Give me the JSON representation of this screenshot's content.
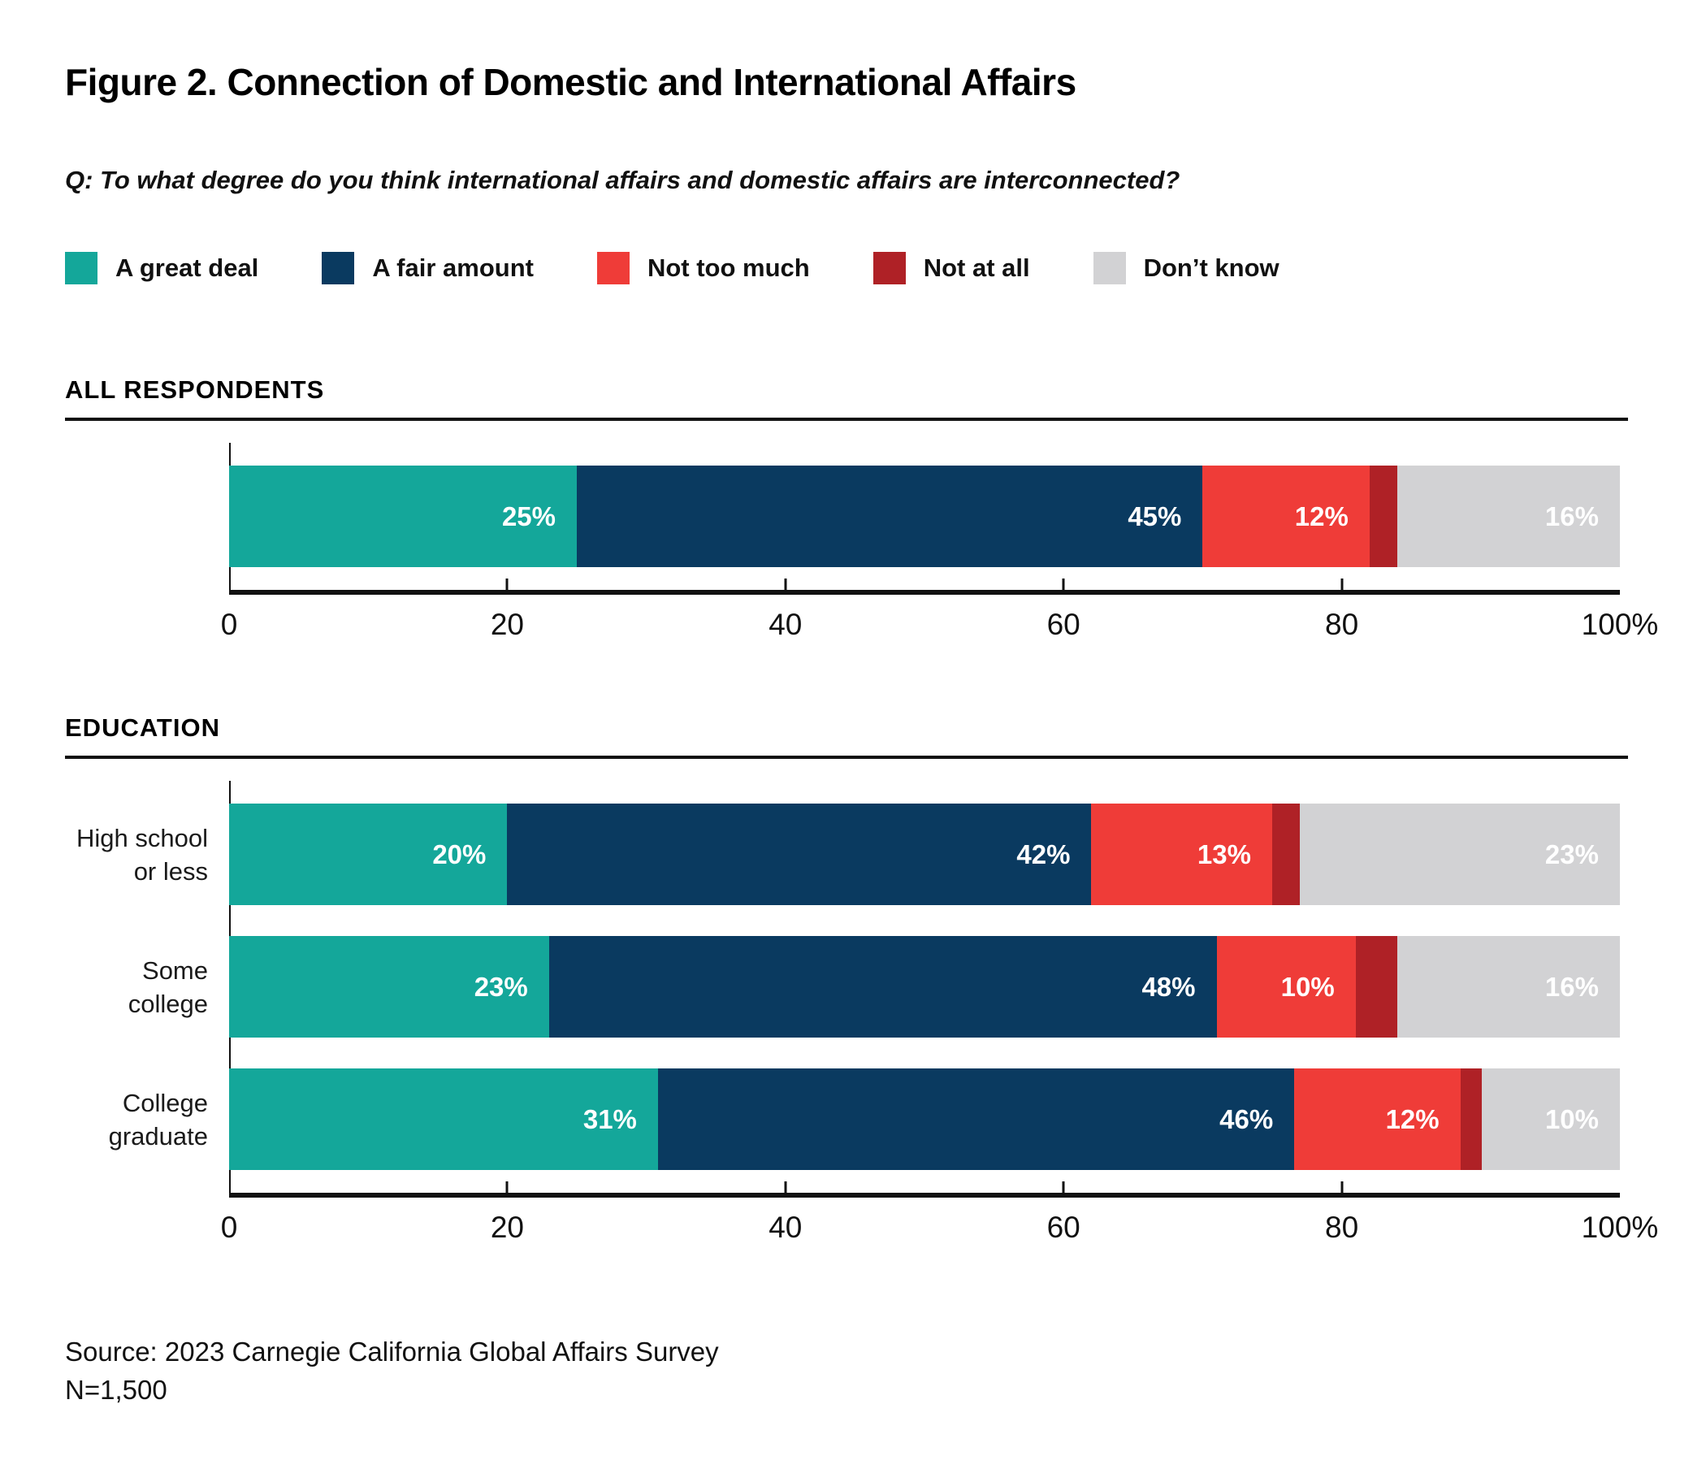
{
  "page": {
    "title": "Figure 2. Connection of Domestic and International Affairs",
    "question": "Q: To what degree do you think international affairs and domestic affairs are interconnected?",
    "source_line1": "Source: 2023 Carnegie California Global Affairs Survey",
    "source_line2": "N=1,500"
  },
  "colors": {
    "a_great_deal": "#14A79A",
    "a_fair_amount": "#0A3A60",
    "not_too_much": "#EF3C38",
    "not_at_all": "#AF2126",
    "dont_know": "#D2D2D4",
    "axis": "#111111",
    "value_label": "#FFFFFF"
  },
  "legend": [
    {
      "label": "A great deal",
      "color": "#14A79A"
    },
    {
      "label": "A fair amount",
      "color": "#0A3A60"
    },
    {
      "label": "Not too much",
      "color": "#EF3C38"
    },
    {
      "label": "Not at all",
      "color": "#AF2126"
    },
    {
      "label": "Don’t know",
      "color": "#D2D2D4"
    }
  ],
  "chart_data": [
    {
      "type": "bar",
      "stacked": true,
      "orientation": "horizontal",
      "section_title": "ALL RESPONDENTS",
      "categories": [
        [
          ""
        ]
      ],
      "series": [
        {
          "name": "A great deal",
          "color": "#14A79A",
          "values": [
            25
          ]
        },
        {
          "name": "A fair amount",
          "color": "#0A3A60",
          "values": [
            45
          ]
        },
        {
          "name": "Not too much",
          "color": "#EF3C38",
          "values": [
            12
          ]
        },
        {
          "name": "Not at all",
          "color": "#AF2126",
          "values": [
            2
          ]
        },
        {
          "name": "Don’t know",
          "color": "#D2D2D4",
          "values": [
            16
          ]
        }
      ],
      "value_suffix": "%",
      "label_min_value": 5,
      "xlim": [
        0,
        100
      ],
      "xtick_values": [
        0,
        20,
        40,
        60,
        80,
        100
      ],
      "xtick_labels": [
        "0",
        "20",
        "40",
        "60",
        "80",
        "100%"
      ],
      "grid": false,
      "legend_position": "top"
    },
    {
      "type": "bar",
      "stacked": true,
      "orientation": "horizontal",
      "section_title": "EDUCATION",
      "categories": [
        [
          "High school",
          "or less"
        ],
        [
          "Some college"
        ],
        [
          "College",
          "graduate"
        ]
      ],
      "series": [
        {
          "name": "A great deal",
          "color": "#14A79A",
          "values": [
            20,
            23,
            31
          ]
        },
        {
          "name": "A fair amount",
          "color": "#0A3A60",
          "values": [
            42,
            48,
            46
          ]
        },
        {
          "name": "Not too much",
          "color": "#EF3C38",
          "values": [
            13,
            10,
            12
          ]
        },
        {
          "name": "Not at all",
          "color": "#AF2126",
          "values": [
            2,
            3,
            1
          ]
        },
        {
          "name": "Don’t know",
          "color": "#D2D2D4",
          "values": [
            23,
            16,
            10
          ]
        }
      ],
      "value_suffix": "%",
      "label_min_value": 5,
      "xlim": [
        0,
        100
      ],
      "xtick_values": [
        0,
        20,
        40,
        60,
        80,
        100
      ],
      "xtick_labels": [
        "0",
        "20",
        "40",
        "60",
        "80",
        "100%"
      ],
      "grid": false,
      "legend_position": "top"
    }
  ]
}
